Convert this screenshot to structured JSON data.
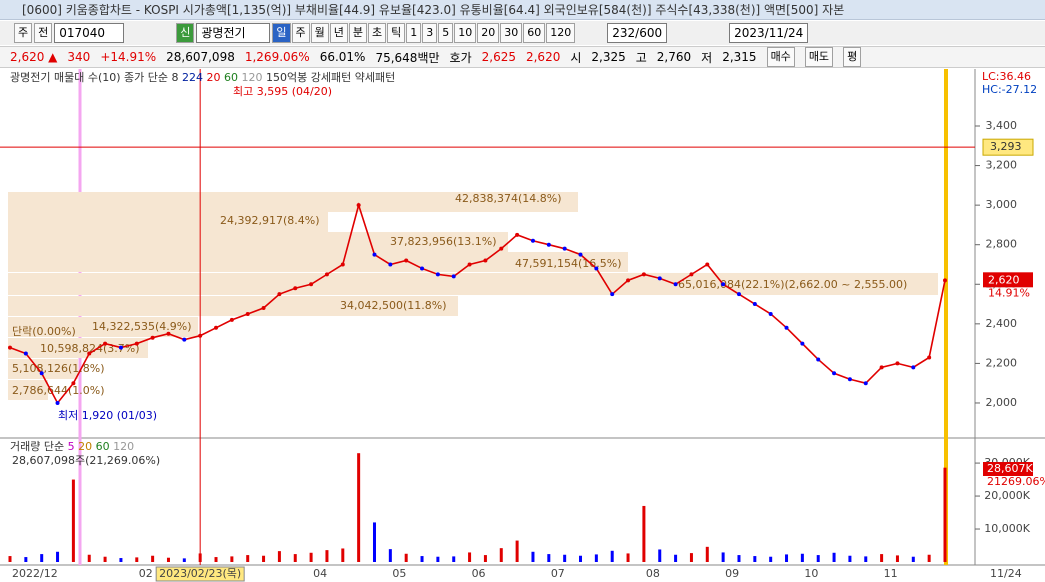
{
  "title_bar": {
    "text": "[0600] 키움종합차트 - KOSPI 시가총액[1,135(억)] 부채비율[44.9] 유보율[423.0] 유통비율[64.4] 외국인보유[584(천)] 주식수[43,338(천)] 액면[500] 자본"
  },
  "toolbar": {
    "left_buttons": [
      "주",
      "전"
    ],
    "code": "017040",
    "badge": "신",
    "name": "광명전기",
    "period_buttons": [
      "일",
      "주",
      "월",
      "년",
      "분",
      "초",
      "틱",
      "1",
      "3",
      "5",
      "10",
      "20",
      "30",
      "60",
      "120"
    ],
    "count": "232/600",
    "date": "2023/11/24"
  },
  "quote_bar": {
    "items": [
      "2,620 ▲",
      "340",
      "+14.91%",
      "28,607,098",
      "1,269.06%",
      "66.01%",
      "75,648백만",
      "호가",
      "2,625",
      "2,620",
      "시",
      "2,325",
      "고",
      "2,760",
      "저",
      "2,315"
    ],
    "buttons": [
      "매수",
      "매도",
      "평"
    ]
  },
  "chart_data": {
    "type": "line",
    "legend": [
      "광명전기 매물대 수(10)",
      "종가 단순 8",
      "224",
      "20",
      "60",
      "120",
      "150억봉 강세패턴",
      "약세패턴"
    ],
    "high_label": "최고 3,595 (04/20)",
    "low_label": "최저 1,920 (01/03)",
    "profile_labels": [
      "42,838,374(14.8%)",
      "24,392,917(8.4%)",
      "37,823,956(13.1%)",
      "47,591,154(16.5%)",
      "65,016,084(22.1%)(2,662.00 ~ 2,555.00)",
      "34,042,500(11.8%)",
      "14,322,535(4.9%)",
      "10,598,824(3.7%)",
      "5,108,126(1.8%)",
      "2,786,644(1.0%)",
      "단락(0.00%)"
    ],
    "indicator_labels": [
      "LC:36.46",
      "HC:-27.12"
    ],
    "ref_line": {
      "value": 3293,
      "label": "3,293"
    },
    "last_price": {
      "value": 2620,
      "label": "2,620"
    },
    "last_change": "14.91%",
    "categories": [
      "2022/12",
      null,
      null,
      null,
      null,
      null,
      null,
      null,
      "02",
      null,
      null,
      null,
      "2023/02/23(목)",
      null,
      null,
      null,
      null,
      null,
      null,
      "04",
      null,
      null,
      null,
      null,
      "05",
      null,
      null,
      null,
      null,
      "06",
      null,
      null,
      null,
      null,
      "07",
      null,
      null,
      null,
      null,
      null,
      "08",
      null,
      null,
      null,
      null,
      "09",
      null,
      null,
      null,
      null,
      "10",
      null,
      null,
      null,
      null,
      "11",
      null,
      null,
      null,
      null
    ],
    "last_date": "11/24",
    "series": [
      {
        "name": "종가",
        "color": "#e00000",
        "values": [
          2280,
          2250,
          2150,
          2000,
          2100,
          2250,
          2300,
          2280,
          2300,
          2330,
          2350,
          2320,
          2340,
          2380,
          2420,
          2450,
          2480,
          2550,
          2580,
          2600,
          2650,
          2700,
          3000,
          2750,
          2700,
          2720,
          2680,
          2650,
          2640,
          2700,
          2720,
          2780,
          2850,
          2820,
          2800,
          2780,
          2750,
          2680,
          2550,
          2620,
          2650,
          2630,
          2600,
          2650,
          2700,
          2600,
          2550,
          2500,
          2450,
          2380,
          2300,
          2220,
          2150,
          2120,
          2100,
          2180,
          2200,
          2180,
          2230,
          2620
        ]
      }
    ],
    "ylim": [
      1828,
      3673
    ],
    "yticks": [
      {
        "value": 2000,
        "label": "2,000"
      },
      {
        "value": 2200,
        "label": "2,200"
      },
      {
        "value": 2400,
        "label": "2,400"
      },
      {
        "value": 2600,
        "label": "2,600"
      },
      {
        "value": 2800,
        "label": "2,800"
      },
      {
        "value": 3000,
        "label": "3,000"
      },
      {
        "value": 3200,
        "label": "3,200"
      },
      {
        "value": 3400,
        "label": "3,400"
      }
    ],
    "grid": false
  },
  "volume_data": {
    "type": "bar",
    "legend": [
      "거래량",
      "단순",
      "5",
      "20",
      "60",
      "120"
    ],
    "summary": "28,607,098주(21,269.06%)",
    "last_volume": "28,607K",
    "last_ratio": "21269.06%",
    "values": [
      1800000,
      1500000,
      2400000,
      3100000,
      25000000,
      2200000,
      1600000,
      1200000,
      1400000,
      1900000,
      1300000,
      1100000,
      2600000,
      1500000,
      1700000,
      2100000,
      1900000,
      3300000,
      2400000,
      2800000,
      3600000,
      4100000,
      33000000,
      12000000,
      3900000,
      2500000,
      1800000,
      1600000,
      1700000,
      2900000,
      2100000,
      4200000,
      6500000,
      3100000,
      2400000,
      2200000,
      1900000,
      2300000,
      3400000,
      2600000,
      17000000,
      3800000,
      2200000,
      2700000,
      4600000,
      2900000,
      2100000,
      1800000,
      1600000,
      2300000,
      2500000,
      2100000,
      2800000,
      1900000,
      1700000,
      2400000,
      2000000,
      1600000,
      2200000,
      28607098
    ],
    "ylim": [
      0,
      37000000
    ],
    "yticks": [
      {
        "value": 10000000,
        "label": "10,000K"
      },
      {
        "value": 20000000,
        "label": "20,000K"
      },
      {
        "value": 30000000,
        "label": "30,000K"
      }
    ]
  }
}
